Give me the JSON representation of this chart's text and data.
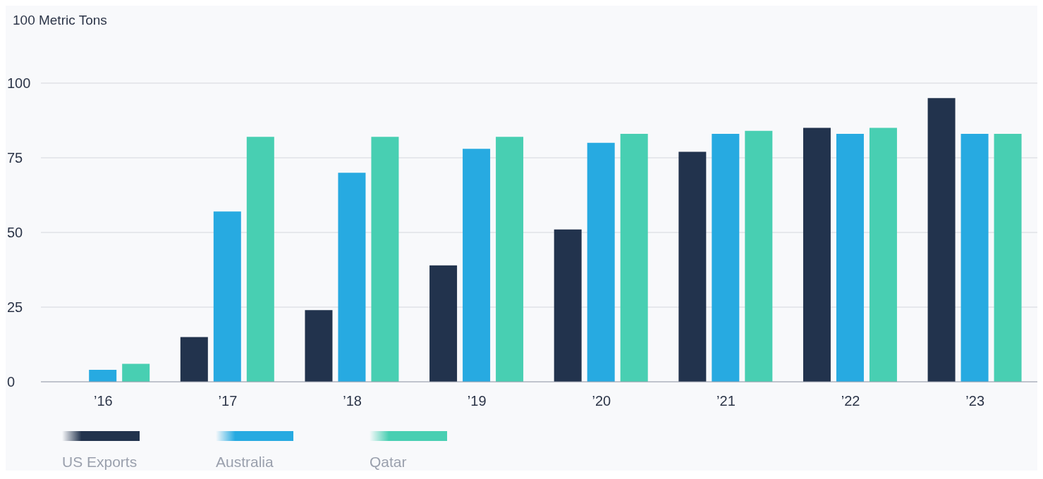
{
  "chart_data": {
    "type": "bar",
    "ylabel": "100 Metric Tons",
    "categories": [
      "’16",
      "’17",
      "’18",
      "’19",
      "’20",
      "’21",
      "’22",
      "’23"
    ],
    "series": [
      {
        "name": "US Exports",
        "color": "#22334d",
        "values": [
          null,
          15,
          24,
          39,
          51,
          77,
          85,
          95
        ]
      },
      {
        "name": "Australia",
        "color": "#27aae1",
        "values": [
          4,
          57,
          70,
          78,
          80,
          83,
          83,
          83
        ]
      },
      {
        "name": "Qatar",
        "color": "#48cfb2",
        "values": [
          6,
          82,
          82,
          82,
          83,
          84,
          85,
          83
        ]
      }
    ],
    "ylim": [
      0,
      100
    ],
    "yticks": [
      0,
      25,
      50,
      75,
      100
    ],
    "grid": "y",
    "legend": "bottom left"
  }
}
